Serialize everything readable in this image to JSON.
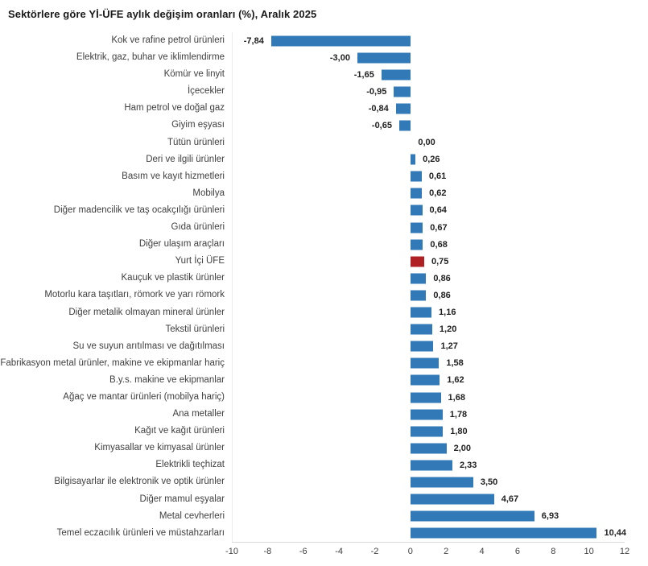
{
  "title": "Sektörlere göre Yİ-ÜFE aylık değişim oranları (%), Aralık 2025",
  "colors": {
    "bar": "#3279B7",
    "highlight": "#B02126",
    "axis_line": "#d9d9d9",
    "plot_border": "#ececec"
  },
  "chart_data": {
    "type": "bar",
    "orientation": "horizontal",
    "title": "Sektörlere göre Yİ-ÜFE aylık değişim oranları (%), Aralık 2025",
    "grid": false,
    "legend": false,
    "xlim": [
      -10,
      12
    ],
    "xticks": [
      -10,
      -8,
      -6,
      -4,
      -2,
      0,
      2,
      4,
      6,
      8,
      10,
      12
    ],
    "highlight_category": "Yurt İçi ÜFE",
    "highlight_index": 13,
    "categories": [
      "Kok ve rafine petrol ürünleri",
      "Elektrik, gaz, buhar ve iklimlendirme",
      "Kömür ve linyit",
      "İçecekler",
      "Ham petrol ve doğal gaz",
      "Giyim eşyası",
      "Tütün ürünleri",
      "Deri ve ilgili ürünler",
      "Basım ve kayıt hizmetleri",
      "Mobilya",
      "Diğer madencilik ve taş ocakçılığı ürünleri",
      "Gıda ürünleri",
      "Diğer ulaşım araçları",
      "Yurt İçi ÜFE",
      "Kauçuk ve plastik ürünler",
      "Motorlu kara taşıtları, römork ve yarı römork",
      "Diğer metalik olmayan mineral ürünler",
      "Tekstil ürünleri",
      "Su ve suyun arıtılması ve dağıtılması",
      "Fabrikasyon metal ürünler, makine ve ekipmanlar hariç",
      "B.y.s. makine ve ekipmanlar",
      "Ağaç ve mantar ürünleri (mobilya hariç)",
      "Ana metaller",
      "Kağıt ve kağıt ürünleri",
      "Kimyasallar ve kimyasal ürünler",
      "Elektrikli teçhizat",
      "Bilgisayarlar ile elektronik ve optik ürünler",
      "Diğer mamul eşyalar",
      "Metal cevherleri",
      "Temel eczacılık ürünleri ve müstahzarları"
    ],
    "values": [
      -7.84,
      -3.0,
      -1.65,
      -0.95,
      -0.84,
      -0.65,
      0.0,
      0.26,
      0.61,
      0.62,
      0.64,
      0.67,
      0.68,
      0.75,
      0.86,
      0.86,
      1.16,
      1.2,
      1.27,
      1.58,
      1.62,
      1.68,
      1.78,
      1.8,
      2.0,
      2.33,
      3.5,
      4.67,
      6.93,
      10.44
    ],
    "value_labels": [
      "-7,84",
      "-3,00",
      "-1,65",
      "-0,95",
      "-0,84",
      "-0,65",
      "0,00",
      "0,26",
      "0,61",
      "0,62",
      "0,64",
      "0,67",
      "0,68",
      "0,75",
      "0,86",
      "0,86",
      "1,16",
      "1,20",
      "1,27",
      "1,58",
      "1,62",
      "1,68",
      "1,78",
      "1,80",
      "2,00",
      "2,33",
      "3,50",
      "4,67",
      "6,93",
      "10,44"
    ]
  }
}
